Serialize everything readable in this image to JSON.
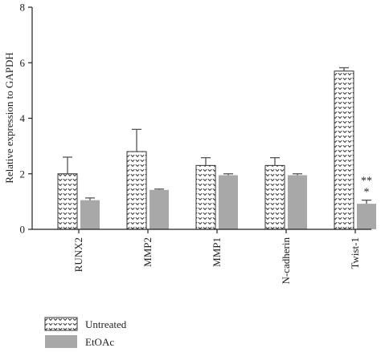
{
  "chart_data": {
    "type": "bar",
    "ylabel": "Relative expression to GAPDH",
    "xlabel": "",
    "ylim": [
      0,
      8
    ],
    "yticks": [
      0,
      2,
      4,
      6,
      8
    ],
    "grid": false,
    "legend_position": "bottom-left",
    "categories": [
      "RUNX2",
      "MMP2",
      "MMP1",
      "N-cadherin",
      "Twist-1"
    ],
    "series": [
      {
        "name": "Untreated",
        "fill": "pattern",
        "color": "#444444",
        "values": [
          2.0,
          2.8,
          2.3,
          2.3,
          5.7
        ],
        "error": [
          0.6,
          0.8,
          0.28,
          0.28,
          0.12
        ]
      },
      {
        "name": "EtOAc",
        "fill": "solid",
        "color": "#a8a8a8",
        "values": [
          1.05,
          1.42,
          1.95,
          1.95,
          0.92
        ],
        "error": [
          0.08,
          0.03,
          0.05,
          0.05,
          0.13
        ]
      }
    ],
    "annotations": [
      {
        "category": "Twist-1",
        "lines": [
          "**",
          "*"
        ]
      }
    ]
  }
}
